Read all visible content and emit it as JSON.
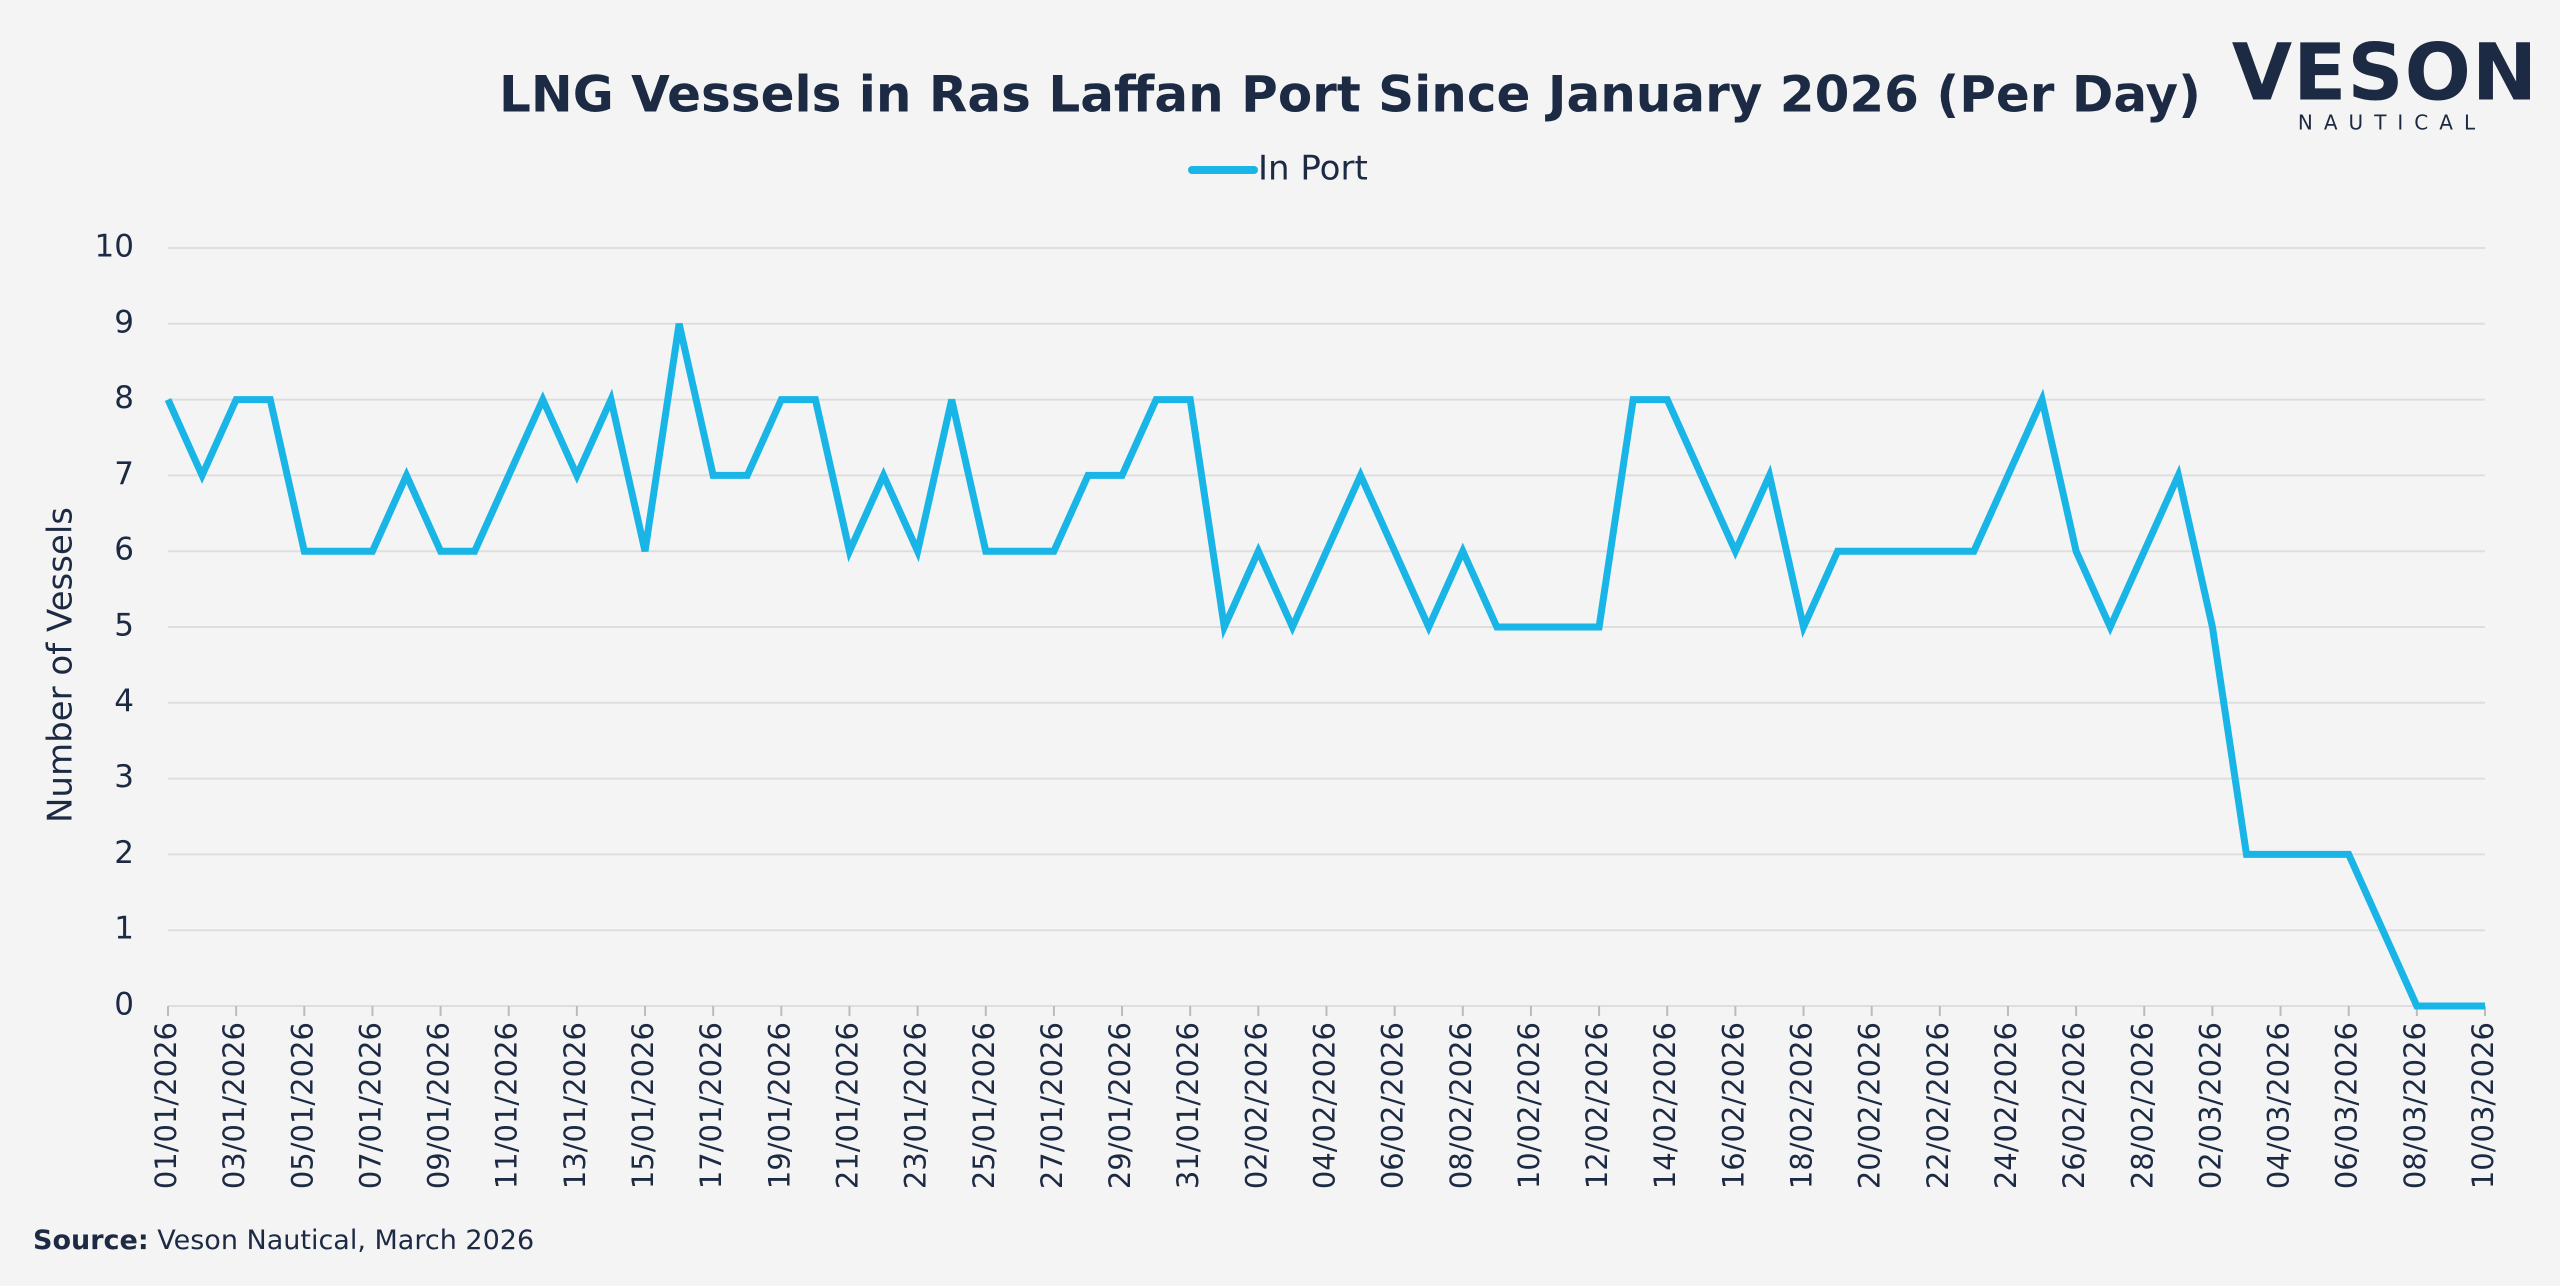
{
  "chart_data": {
    "type": "line",
    "title": "LNG Vessels in Ras Laffan Port Since January 2026 (Per Day)",
    "y_label": "Number of Vessels",
    "source_label": "Source:",
    "source": "Veson Nautical, March 2026",
    "logo": {
      "name": "VESON",
      "tagline": "NAUTICAL"
    },
    "categories": [
      "01/01/2026",
      null,
      "03/01/2026",
      null,
      "05/01/2026",
      null,
      "07/01/2026",
      null,
      "09/01/2026",
      null,
      "11/01/2026",
      null,
      "13/01/2026",
      null,
      "15/01/2026",
      null,
      "17/01/2026",
      null,
      "19/01/2026",
      null,
      "21/01/2026",
      null,
      "23/01/2026",
      null,
      "25/01/2026",
      null,
      "27/01/2026",
      null,
      "29/01/2026",
      null,
      "31/01/2026",
      null,
      "02/02/2026",
      null,
      "04/02/2026",
      null,
      "06/02/2026",
      null,
      "08/02/2026",
      null,
      "10/02/2026",
      null,
      "12/02/2026",
      null,
      "14/02/2026",
      null,
      "16/02/2026",
      null,
      "18/02/2026",
      null,
      "20/02/2026",
      null,
      "22/02/2026",
      null,
      "24/02/2026",
      null,
      "26/02/2026",
      null,
      "28/02/2026",
      null,
      "02/03/2026",
      null,
      "04/03/2026",
      null,
      "06/03/2026",
      null,
      "08/03/2026",
      null,
      "10/03/2026"
    ],
    "series": [
      {
        "name": "In Port",
        "color": "#19b5e6",
        "values": [
          8,
          7,
          8,
          8,
          6,
          6,
          6,
          7,
          6,
          6,
          7,
          8,
          7,
          8,
          6,
          9,
          7,
          7,
          8,
          8,
          6,
          7,
          6,
          8,
          6,
          6,
          6,
          7,
          7,
          8,
          8,
          5,
          6,
          5,
          6,
          7,
          6,
          5,
          6,
          5,
          5,
          5,
          5,
          8,
          8,
          7,
          6,
          7,
          5,
          6,
          6,
          6,
          6,
          6,
          7,
          8,
          6,
          5,
          6,
          7,
          5,
          2,
          2,
          2,
          2,
          1,
          0,
          0,
          0
        ]
      }
    ],
    "ylim": [
      0,
      10
    ],
    "yticks": [
      0,
      1,
      2,
      3,
      4,
      5,
      6,
      7,
      8,
      9,
      10
    ],
    "grid": true
  }
}
